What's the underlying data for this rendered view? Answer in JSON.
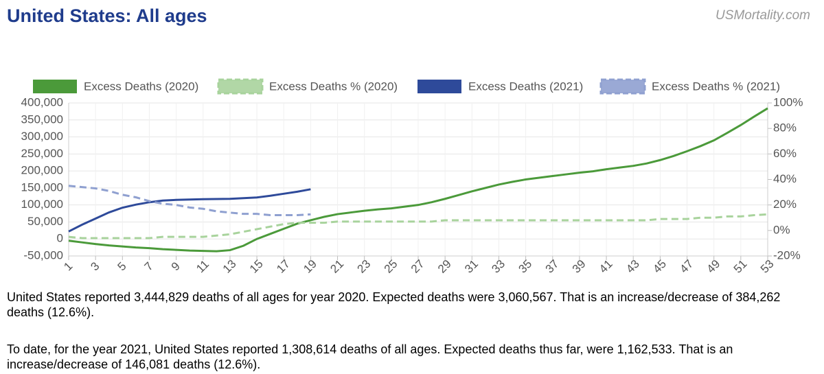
{
  "header": {
    "title": "United States: All ages",
    "site": "USMortality.com"
  },
  "chart_data": {
    "type": "line",
    "x": [
      1,
      2,
      3,
      4,
      5,
      6,
      7,
      8,
      9,
      10,
      11,
      12,
      13,
      14,
      15,
      16,
      17,
      18,
      19,
      20,
      21,
      22,
      23,
      24,
      25,
      26,
      27,
      28,
      29,
      30,
      31,
      32,
      33,
      34,
      35,
      36,
      37,
      38,
      39,
      40,
      41,
      42,
      43,
      44,
      45,
      46,
      47,
      48,
      49,
      50,
      51,
      52,
      53
    ],
    "xlim": [
      1,
      53
    ],
    "xticks": [
      1,
      3,
      5,
      7,
      9,
      11,
      13,
      15,
      17,
      19,
      21,
      23,
      25,
      27,
      29,
      31,
      33,
      35,
      37,
      39,
      41,
      43,
      45,
      47,
      49,
      51,
      53
    ],
    "ylim": [
      -50000,
      400000
    ],
    "yticks": [
      {
        "value": -50000,
        "label": "-50,000"
      },
      0,
      {
        "value": 50000,
        "label": "50,000"
      },
      {
        "value": 100000,
        "label": "100,000"
      },
      {
        "value": 150000,
        "label": "150,000"
      },
      {
        "value": 200000,
        "label": "200,000"
      },
      {
        "value": 250000,
        "label": "250,000"
      },
      {
        "value": 300000,
        "label": "300,000"
      },
      {
        "value": 350000,
        "label": "350,000"
      },
      {
        "value": 400000,
        "label": "400,000"
      }
    ],
    "y2lim": [
      -20,
      100
    ],
    "y2ticks": [
      {
        "value": -20,
        "label": "-20%"
      },
      {
        "value": 0,
        "label": "0%"
      },
      {
        "value": 20,
        "label": "20%"
      },
      {
        "value": 40,
        "label": "40%"
      },
      {
        "value": 60,
        "label": "60%"
      },
      {
        "value": 80,
        "label": "80%"
      },
      {
        "value": 100,
        "label": "100%"
      }
    ],
    "grid": true,
    "legend": "top",
    "series": [
      {
        "name": "Excess Deaths (2020)",
        "color": "#4b9a3a",
        "dashed": false,
        "values": [
          -5000,
          -10000,
          -15000,
          -19000,
          -22000,
          -25000,
          -27000,
          -30000,
          -32000,
          -34000,
          -35000,
          -36000,
          -33000,
          -20000,
          0,
          15000,
          30000,
          45000,
          55000,
          65000,
          73000,
          78000,
          83000,
          87000,
          90000,
          95000,
          100000,
          108000,
          118000,
          129000,
          140000,
          150000,
          160000,
          168000,
          175000,
          180000,
          185000,
          190000,
          195000,
          199000,
          205000,
          210000,
          215000,
          222000,
          232000,
          244000,
          258000,
          273000,
          290000,
          312000,
          335000,
          360000,
          384262
        ]
      },
      {
        "name": "Excess Deaths % (2020)",
        "color": "#a8d39c",
        "dashed": true,
        "axis": "y2",
        "values": [
          -5,
          -6,
          -6,
          -6,
          -6,
          -6,
          -6,
          -5,
          -5,
          -5,
          -5,
          -4,
          -3,
          -1,
          1,
          3,
          5,
          6,
          6,
          6,
          7,
          7,
          7,
          7,
          7,
          7,
          7,
          7,
          8,
          8,
          8,
          8,
          8,
          8,
          8,
          8,
          8,
          8,
          8,
          8,
          8,
          8,
          8,
          8,
          9,
          9,
          9,
          10,
          10,
          11,
          11,
          12,
          12.6
        ]
      },
      {
        "name": "Excess Deaths (2021)",
        "color": "#2e4a9a",
        "dashed": false,
        "values": [
          22000,
          42000,
          60000,
          78000,
          92000,
          101000,
          108000,
          113000,
          115000,
          116000,
          117000,
          117500,
          118000,
          120000,
          122000,
          127000,
          133000,
          139000,
          146081,
          null,
          null,
          null,
          null,
          null,
          null,
          null,
          null,
          null,
          null,
          null,
          null,
          null,
          null,
          null,
          null,
          null,
          null,
          null,
          null,
          null,
          null,
          null,
          null,
          null,
          null,
          null,
          null,
          null,
          null,
          null,
          null,
          null,
          null
        ]
      },
      {
        "name": "Excess Deaths % (2021)",
        "color": "#8fa0d0",
        "dashed": true,
        "axis": "y2",
        "values": [
          35,
          34,
          33,
          31,
          28,
          26,
          23,
          21,
          20,
          18,
          17,
          15,
          14,
          13,
          13,
          12,
          12,
          12,
          12.6,
          null,
          null,
          null,
          null,
          null,
          null,
          null,
          null,
          null,
          null,
          null,
          null,
          null,
          null,
          null,
          null,
          null,
          null,
          null,
          null,
          null,
          null,
          null,
          null,
          null,
          null,
          null,
          null,
          null,
          null,
          null,
          null,
          null,
          null
        ]
      }
    ]
  },
  "text": {
    "paragraphs": [
      "United States reported 3,444,829 deaths of all ages for year 2020. Expected deaths were 3,060,567. That is an increase/decrease of 384,262 deaths (12.6%).",
      "To date, for the year 2021, United States reported 1,308,614 deaths of all ages. Expected deaths thus far, were 1,162,533. That is an increase/decrease of 146,081 deaths (12.6%)."
    ]
  }
}
